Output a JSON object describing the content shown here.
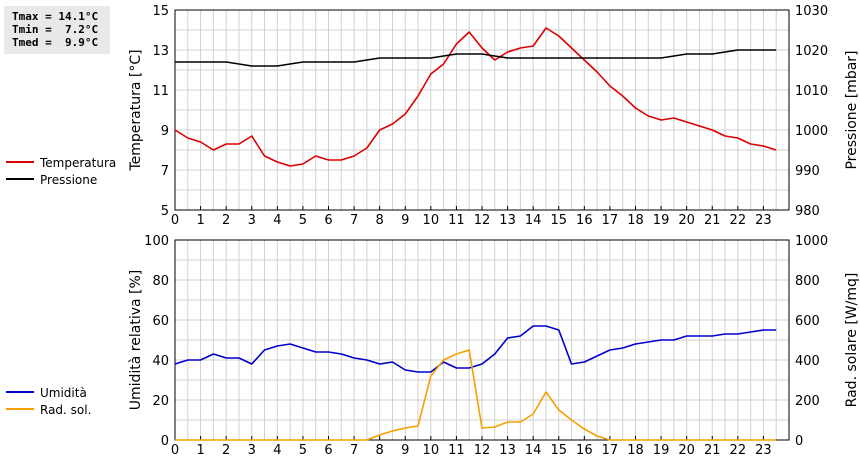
{
  "stats": {
    "tmax": "Tmax = 14.1°C",
    "tmin": "Tmin =  7.2°C",
    "tmed": "Tmed =  9.9°C"
  },
  "colors": {
    "temperature": "#dd0000",
    "pressure": "#000000",
    "humidity": "#0000cc",
    "radiation": "#f5a000",
    "grid": "#d0d0d0"
  },
  "chart_data": [
    {
      "type": "line",
      "xlabel": "",
      "x_ticks": [
        "0",
        "1",
        "2",
        "3",
        "4",
        "5",
        "6",
        "7",
        "8",
        "9",
        "10",
        "11",
        "12",
        "13",
        "14",
        "15",
        "16",
        "17",
        "18",
        "19",
        "20",
        "21",
        "22",
        "23"
      ],
      "xlim": [
        0,
        24
      ],
      "ylabel_left": "Temperatura [°C]",
      "ylim_left": [
        5,
        15
      ],
      "y_ticks_left": [
        "5",
        "7",
        "9",
        "11",
        "13",
        "15"
      ],
      "ylabel_right": "Pressione [mbar]",
      "ylim_right": [
        980,
        1030
      ],
      "y_ticks_right": [
        "980",
        "990",
        "1000",
        "1010",
        "1020",
        "1030"
      ],
      "grid": true,
      "legend_position": "left",
      "series": [
        {
          "name": "Temperatura",
          "axis": "left",
          "x": [
            0,
            0.5,
            1,
            1.5,
            2,
            2.5,
            3,
            3.5,
            4,
            4.5,
            5,
            5.5,
            6,
            6.5,
            7,
            7.5,
            8,
            8.5,
            9,
            9.5,
            10,
            10.5,
            11,
            11.5,
            12,
            12.5,
            13,
            13.5,
            14,
            14.5,
            15,
            15.5,
            16,
            16.5,
            17,
            17.5,
            18,
            18.5,
            19,
            19.5,
            20,
            20.5,
            21,
            21.5,
            22,
            22.5,
            23,
            23.5
          ],
          "values": [
            9.0,
            8.6,
            8.4,
            8.0,
            8.3,
            8.3,
            8.7,
            7.7,
            7.4,
            7.2,
            7.3,
            7.7,
            7.5,
            7.5,
            7.7,
            8.1,
            9.0,
            9.3,
            9.8,
            10.7,
            11.8,
            12.3,
            13.3,
            13.9,
            13.1,
            12.5,
            12.9,
            13.1,
            13.2,
            14.1,
            13.7,
            13.1,
            12.5,
            11.9,
            11.2,
            10.7,
            10.1,
            9.7,
            9.5,
            9.6,
            9.4,
            9.2,
            9.0,
            8.7,
            8.6,
            8.3,
            8.2,
            8.0
          ]
        },
        {
          "name": "Pressione",
          "axis": "right",
          "x": [
            0,
            1,
            2,
            3,
            4,
            5,
            6,
            7,
            8,
            9,
            10,
            11,
            12,
            13,
            14,
            15,
            16,
            17,
            18,
            19,
            20,
            21,
            22,
            23,
            23.5
          ],
          "values": [
            1017,
            1017,
            1017,
            1016,
            1016,
            1017,
            1017,
            1017,
            1018,
            1018,
            1018,
            1019,
            1019,
            1018,
            1018,
            1018,
            1018,
            1018,
            1018,
            1018,
            1019,
            1019,
            1020,
            1020,
            1020
          ]
        }
      ]
    },
    {
      "type": "line",
      "xlabel": "",
      "x_ticks": [
        "0",
        "1",
        "2",
        "3",
        "4",
        "5",
        "6",
        "7",
        "8",
        "9",
        "10",
        "11",
        "12",
        "13",
        "14",
        "15",
        "16",
        "17",
        "18",
        "19",
        "20",
        "21",
        "22",
        "23"
      ],
      "xlim": [
        0,
        24
      ],
      "ylabel_left": "Umidità relativa [%]",
      "ylim_left": [
        0,
        100
      ],
      "y_ticks_left": [
        "0",
        "20",
        "40",
        "60",
        "80",
        "100"
      ],
      "ylabel_right": "Rad. solare [W/mq]",
      "ylim_right": [
        0,
        1000
      ],
      "y_ticks_right": [
        "0",
        "200",
        "400",
        "600",
        "800",
        "1000"
      ],
      "grid": true,
      "legend_position": "left",
      "series": [
        {
          "name": "Umidità",
          "axis": "left",
          "x": [
            0,
            0.5,
            1,
            1.5,
            2,
            2.5,
            3,
            3.5,
            4,
            4.5,
            5,
            5.5,
            6,
            6.5,
            7,
            7.5,
            8,
            8.5,
            9,
            9.5,
            10,
            10.5,
            11,
            11.5,
            12,
            12.5,
            13,
            13.5,
            14,
            14.5,
            15,
            15.5,
            16,
            16.5,
            17,
            17.5,
            18,
            18.5,
            19,
            19.5,
            20,
            20.5,
            21,
            21.5,
            22,
            22.5,
            23,
            23.5
          ],
          "values": [
            38,
            40,
            40,
            43,
            41,
            41,
            38,
            45,
            47,
            48,
            46,
            44,
            44,
            43,
            41,
            40,
            38,
            39,
            35,
            34,
            34,
            39,
            36,
            36,
            38,
            43,
            51,
            52,
            57,
            57,
            55,
            38,
            39,
            42,
            45,
            46,
            48,
            49,
            50,
            50,
            52,
            52,
            52,
            53,
            53,
            54,
            55,
            55
          ]
        },
        {
          "name": "Rad. sol.",
          "axis": "right",
          "x": [
            0,
            1,
            2,
            3,
            4,
            5,
            6,
            7,
            7.5,
            8,
            8.5,
            9,
            9.5,
            10,
            10.5,
            11,
            11.5,
            12,
            12.5,
            13,
            13.5,
            14,
            14.5,
            15,
            15.5,
            16,
            16.5,
            17,
            18,
            19,
            20,
            21,
            22,
            23,
            23.5
          ],
          "values": [
            0,
            0,
            0,
            0,
            0,
            0,
            0,
            0,
            0,
            25,
            45,
            60,
            70,
            320,
            400,
            430,
            450,
            60,
            65,
            90,
            90,
            130,
            240,
            150,
            100,
            55,
            20,
            0,
            0,
            0,
            0,
            0,
            0,
            0,
            0
          ]
        }
      ]
    }
  ]
}
